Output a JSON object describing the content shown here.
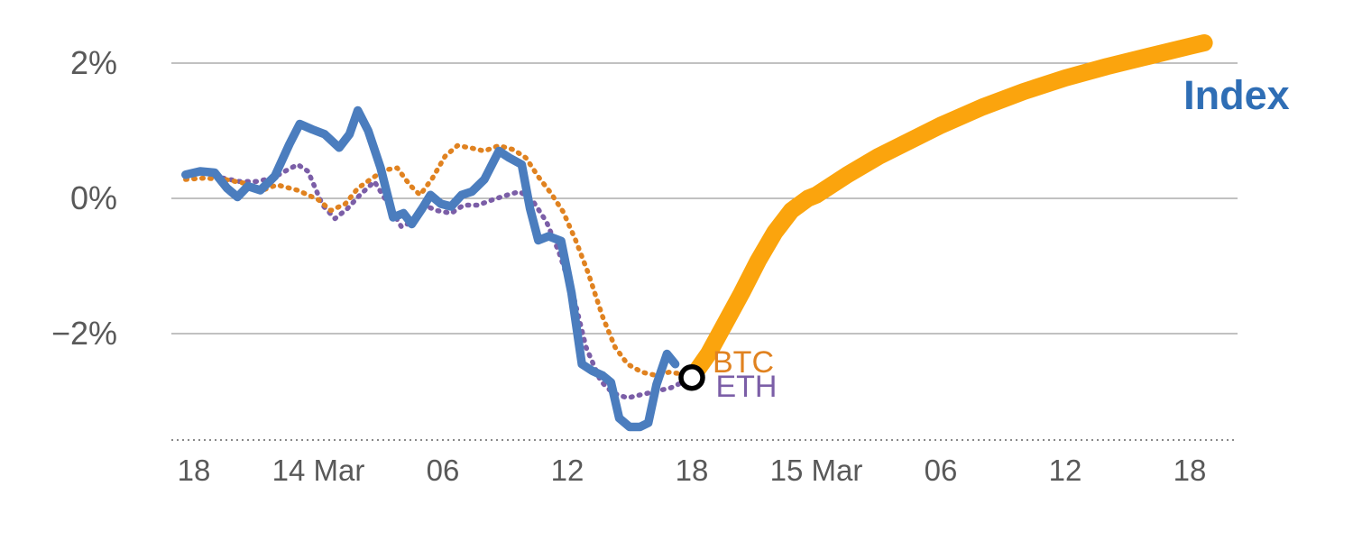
{
  "page": {
    "background": "#ffffff"
  },
  "chart_data": {
    "type": "line",
    "title": "",
    "xlabel": "",
    "ylabel": "",
    "x_axis": {
      "unit": "hours-from-first-tick",
      "range": [
        -1.2,
        49.8
      ],
      "ticks": [
        {
          "value": 0,
          "label": "18"
        },
        {
          "value": 6,
          "label": "14 Mar"
        },
        {
          "value": 12,
          "label": "06"
        },
        {
          "value": 18,
          "label": "12"
        },
        {
          "value": 24,
          "label": "18"
        },
        {
          "value": 30,
          "label": "15 Mar"
        },
        {
          "value": 36,
          "label": "06"
        },
        {
          "value": 42,
          "label": "12"
        },
        {
          "value": 48,
          "label": "18"
        }
      ]
    },
    "y_axis": {
      "unit": "percent",
      "range": [
        -3.9,
        2.6
      ],
      "gridlines": true,
      "ticks": [
        {
          "value": 2,
          "label": "2%"
        },
        {
          "value": 0,
          "label": "0%"
        },
        {
          "value": -2,
          "label": "−2%"
        }
      ]
    },
    "style": {
      "grid_color": "#9C9C9C",
      "axis_line_color": "#8A8A8A",
      "axis_text_color": "#595959",
      "marker_fill": "#FFFFFF",
      "marker_stroke": "#000000"
    },
    "series": [
      {
        "name": "ETH",
        "color": "#7B5EA7",
        "style": "dotted",
        "width": 5.5,
        "points": [
          [
            1.4,
            0.3
          ],
          [
            2.2,
            0.25
          ],
          [
            3.0,
            0.25
          ],
          [
            3.8,
            0.3
          ],
          [
            4.5,
            0.42
          ],
          [
            5.0,
            0.5
          ],
          [
            5.5,
            0.4
          ],
          [
            6.2,
            -0.1
          ],
          [
            6.8,
            -0.3
          ],
          [
            7.4,
            -0.15
          ],
          [
            8.0,
            0.05
          ],
          [
            8.7,
            0.25
          ],
          [
            9.4,
            -0.1
          ],
          [
            10.0,
            -0.42
          ],
          [
            10.5,
            -0.35
          ],
          [
            11.1,
            -0.1
          ],
          [
            11.7,
            -0.18
          ],
          [
            12.4,
            -0.22
          ],
          [
            13.0,
            -0.1
          ],
          [
            13.7,
            -0.1
          ],
          [
            14.4,
            -0.02
          ],
          [
            15.1,
            0.05
          ],
          [
            15.7,
            0.1
          ],
          [
            16.3,
            -0.02
          ],
          [
            17.0,
            -0.35
          ],
          [
            17.6,
            -0.8
          ],
          [
            18.3,
            -1.45
          ],
          [
            18.9,
            -2.2
          ],
          [
            19.6,
            -2.7
          ],
          [
            20.2,
            -2.88
          ],
          [
            20.9,
            -2.95
          ],
          [
            21.6,
            -2.9
          ],
          [
            22.3,
            -2.85
          ],
          [
            23.0,
            -2.8
          ],
          [
            24.0,
            -2.65
          ]
        ]
      },
      {
        "name": "BTC",
        "color": "#E08220",
        "style": "dotted",
        "width": 5.5,
        "points": [
          [
            -0.4,
            0.28
          ],
          [
            0.5,
            0.3
          ],
          [
            1.5,
            0.28
          ],
          [
            2.5,
            0.22
          ],
          [
            3.3,
            0.12
          ],
          [
            4.0,
            0.2
          ],
          [
            5.0,
            0.12
          ],
          [
            6.0,
            -0.02
          ],
          [
            6.6,
            -0.18
          ],
          [
            7.3,
            -0.08
          ],
          [
            7.9,
            0.15
          ],
          [
            8.6,
            0.3
          ],
          [
            9.2,
            0.42
          ],
          [
            9.8,
            0.45
          ],
          [
            10.4,
            0.2
          ],
          [
            10.9,
            0.05
          ],
          [
            11.5,
            0.3
          ],
          [
            12.1,
            0.62
          ],
          [
            12.7,
            0.78
          ],
          [
            13.3,
            0.75
          ],
          [
            14.0,
            0.7
          ],
          [
            14.7,
            0.78
          ],
          [
            15.4,
            0.72
          ],
          [
            16.0,
            0.6
          ],
          [
            16.6,
            0.32
          ],
          [
            17.2,
            0.08
          ],
          [
            17.8,
            -0.2
          ],
          [
            18.4,
            -0.62
          ],
          [
            19.0,
            -1.1
          ],
          [
            19.7,
            -1.75
          ],
          [
            20.3,
            -2.2
          ],
          [
            20.9,
            -2.45
          ],
          [
            21.6,
            -2.57
          ],
          [
            22.3,
            -2.62
          ],
          [
            22.9,
            -2.57
          ],
          [
            23.6,
            -2.6
          ],
          [
            24.0,
            -2.65
          ]
        ]
      },
      {
        "name": "Index",
        "color": "#4B7DBE",
        "style": "solid",
        "width": 9.5,
        "points": [
          [
            -0.4,
            0.35
          ],
          [
            0.3,
            0.4
          ],
          [
            1.0,
            0.38
          ],
          [
            1.6,
            0.15
          ],
          [
            2.1,
            0.02
          ],
          [
            2.6,
            0.18
          ],
          [
            3.2,
            0.12
          ],
          [
            3.9,
            0.33
          ],
          [
            4.6,
            0.8
          ],
          [
            5.1,
            1.1
          ],
          [
            5.7,
            1.02
          ],
          [
            6.3,
            0.95
          ],
          [
            7.0,
            0.75
          ],
          [
            7.5,
            0.95
          ],
          [
            7.9,
            1.3
          ],
          [
            8.4,
            1.0
          ],
          [
            9.0,
            0.45
          ],
          [
            9.6,
            -0.28
          ],
          [
            10.1,
            -0.22
          ],
          [
            10.5,
            -0.38
          ],
          [
            11.0,
            -0.15
          ],
          [
            11.4,
            0.05
          ],
          [
            11.9,
            -0.08
          ],
          [
            12.4,
            -0.12
          ],
          [
            12.9,
            0.05
          ],
          [
            13.4,
            0.1
          ],
          [
            14.0,
            0.28
          ],
          [
            14.7,
            0.7
          ],
          [
            15.2,
            0.6
          ],
          [
            15.8,
            0.5
          ],
          [
            16.2,
            -0.15
          ],
          [
            16.6,
            -0.62
          ],
          [
            17.1,
            -0.56
          ],
          [
            17.7,
            -0.63
          ],
          [
            18.2,
            -1.4
          ],
          [
            18.7,
            -2.45
          ],
          [
            19.2,
            -2.55
          ],
          [
            19.7,
            -2.62
          ],
          [
            20.1,
            -2.72
          ],
          [
            20.5,
            -3.25
          ],
          [
            21.0,
            -3.38
          ],
          [
            21.5,
            -3.38
          ],
          [
            21.9,
            -3.32
          ],
          [
            22.3,
            -2.75
          ],
          [
            22.8,
            -2.3
          ],
          [
            23.2,
            -2.45
          ]
        ]
      },
      {
        "name": "index-projection",
        "color": "#FBA40D",
        "style": "solid",
        "width": 19,
        "points": [
          [
            24.0,
            -2.65
          ],
          [
            24.8,
            -2.3
          ],
          [
            25.6,
            -1.85
          ],
          [
            26.4,
            -1.4
          ],
          [
            27.2,
            -0.92
          ],
          [
            28.0,
            -0.5
          ],
          [
            28.8,
            -0.18
          ],
          [
            29.6,
            0.0
          ],
          [
            30.0,
            0.05
          ],
          [
            31.5,
            0.35
          ],
          [
            33.0,
            0.62
          ],
          [
            34.5,
            0.85
          ],
          [
            36.0,
            1.08
          ],
          [
            38.0,
            1.35
          ],
          [
            40.0,
            1.58
          ],
          [
            42.0,
            1.78
          ],
          [
            44.0,
            1.95
          ],
          [
            46.0,
            2.1
          ],
          [
            48.0,
            2.25
          ],
          [
            48.7,
            2.3
          ]
        ]
      }
    ],
    "marker": {
      "t": 24.0,
      "value": -2.65,
      "radius": 12
    },
    "annotations": [
      {
        "text": "Index",
        "t": 47.7,
        "value": 1.32,
        "color": "#2F6EB5",
        "size": 45,
        "bold": true
      },
      {
        "text": "BTC",
        "t": 25.0,
        "value": -2.57,
        "color": "#E08220",
        "size": 34,
        "bold": false
      },
      {
        "text": "ETH",
        "t": 25.15,
        "value": -2.93,
        "color": "#7B5EA7",
        "size": 34,
        "bold": false
      }
    ]
  }
}
